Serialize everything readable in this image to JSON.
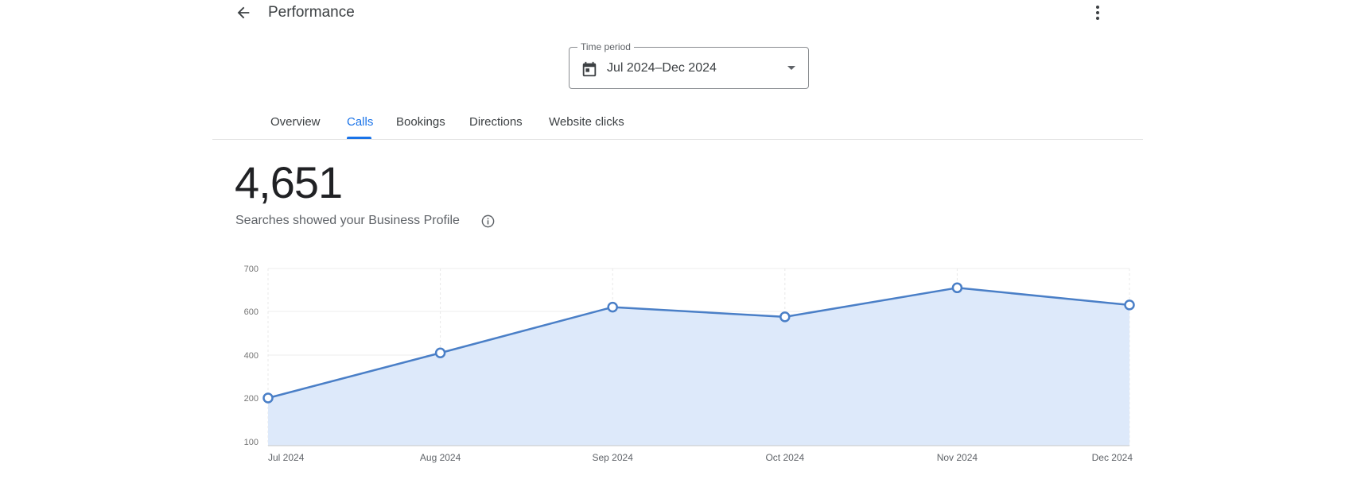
{
  "header": {
    "back_icon": "arrow-left-icon",
    "title": "Performance",
    "more_icon": "more-vert-icon"
  },
  "time_period": {
    "label": "Time period",
    "value": "Jul 2024–Dec 2024",
    "calendar_icon": "calendar-icon",
    "dropdown_icon": "caret-down-icon"
  },
  "tabs": [
    {
      "label": "Overview",
      "active": false
    },
    {
      "label": "Calls",
      "active": true
    },
    {
      "label": "Bookings",
      "active": false
    },
    {
      "label": "Directions",
      "active": false
    },
    {
      "label": "Website clicks",
      "active": false
    }
  ],
  "metric": {
    "value": "4,651",
    "label": "Searches showed your Business Profile",
    "info_icon": "info-icon"
  },
  "colors": {
    "accent": "#1a73e8",
    "line": "#4a7fc7",
    "area_fill": "#dde9fa"
  },
  "chart_data": {
    "type": "area",
    "categories": [
      "Jul 2024",
      "Aug 2024",
      "Sep 2024",
      "Oct 2024",
      "Nov 2024",
      "Dec 2024"
    ],
    "values": [
      200,
      410,
      610,
      575,
      655,
      615
    ],
    "y_ticks": [
      "700",
      "600",
      "400",
      "200",
      "100"
    ],
    "grid": true,
    "markers": true
  }
}
